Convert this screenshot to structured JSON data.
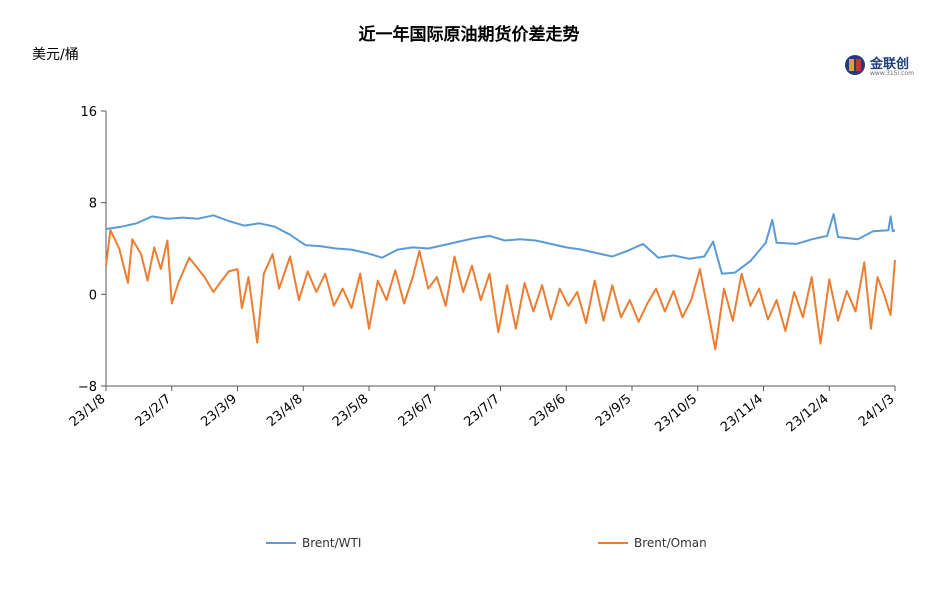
{
  "chart_data": {
    "type": "line",
    "title": "近一年国际原油期货价差走势",
    "ylabel": "美元/桶",
    "ylim": [
      -8,
      16
    ],
    "yticks": [
      -8,
      0,
      8,
      16
    ],
    "xlim": [
      "2023-01-08",
      "2024-01-03"
    ],
    "xticks": [
      "23/1/8",
      "23/2/7",
      "23/3/9",
      "23/4/8",
      "23/5/8",
      "23/6/7",
      "23/7/7",
      "23/8/6",
      "23/9/5",
      "23/10/5",
      "23/11/4",
      "23/12/4",
      "24/1/3"
    ],
    "grid": false,
    "legend": "bottom",
    "series": [
      {
        "name": "Brent/WTI",
        "color": "#5b9bd5",
        "points": [
          [
            "2023-01-08",
            5.7
          ],
          [
            "2023-01-15",
            5.9
          ],
          [
            "2023-01-22",
            6.2
          ],
          [
            "2023-01-29",
            6.8
          ],
          [
            "2023-02-05",
            6.6
          ],
          [
            "2023-02-12",
            6.7
          ],
          [
            "2023-02-19",
            6.6
          ],
          [
            "2023-02-26",
            6.9
          ],
          [
            "2023-03-05",
            6.4
          ],
          [
            "2023-03-12",
            6.0
          ],
          [
            "2023-03-19",
            6.2
          ],
          [
            "2023-03-26",
            5.9
          ],
          [
            "2023-04-02",
            5.2
          ],
          [
            "2023-04-09",
            4.3
          ],
          [
            "2023-04-16",
            4.2
          ],
          [
            "2023-04-23",
            4.0
          ],
          [
            "2023-04-30",
            3.9
          ],
          [
            "2023-05-07",
            3.6
          ],
          [
            "2023-05-14",
            3.2
          ],
          [
            "2023-05-21",
            3.9
          ],
          [
            "2023-05-28",
            4.1
          ],
          [
            "2023-06-04",
            4.0
          ],
          [
            "2023-06-11",
            4.3
          ],
          [
            "2023-06-18",
            4.6
          ],
          [
            "2023-06-25",
            4.9
          ],
          [
            "2023-07-02",
            5.1
          ],
          [
            "2023-07-09",
            4.7
          ],
          [
            "2023-07-16",
            4.8
          ],
          [
            "2023-07-23",
            4.7
          ],
          [
            "2023-07-30",
            4.4
          ],
          [
            "2023-08-06",
            4.1
          ],
          [
            "2023-08-13",
            3.9
          ],
          [
            "2023-08-20",
            3.6
          ],
          [
            "2023-08-27",
            3.3
          ],
          [
            "2023-09-03",
            3.8
          ],
          [
            "2023-09-10",
            4.4
          ],
          [
            "2023-09-17",
            3.2
          ],
          [
            "2023-09-24",
            3.4
          ],
          [
            "2023-10-01",
            3.1
          ],
          [
            "2023-10-08",
            3.3
          ],
          [
            "2023-10-12",
            4.6
          ],
          [
            "2023-10-16",
            1.8
          ],
          [
            "2023-10-22",
            1.9
          ],
          [
            "2023-10-29",
            2.9
          ],
          [
            "2023-11-05",
            4.5
          ],
          [
            "2023-11-08",
            6.5
          ],
          [
            "2023-11-10",
            4.5
          ],
          [
            "2023-11-19",
            4.4
          ],
          [
            "2023-11-26",
            4.8
          ],
          [
            "2023-12-03",
            5.1
          ],
          [
            "2023-12-06",
            7.0
          ],
          [
            "2023-12-08",
            5.0
          ],
          [
            "2023-12-17",
            4.8
          ],
          [
            "2023-12-24",
            5.5
          ],
          [
            "2023-12-31",
            5.6
          ],
          [
            "2024-01-01",
            6.8
          ],
          [
            "2024-01-02",
            5.5
          ],
          [
            "2024-01-03",
            5.6
          ]
        ]
      },
      {
        "name": "Brent/Oman",
        "color": "#ed7d31",
        "points": [
          [
            "2023-01-08",
            2.5
          ],
          [
            "2023-01-10",
            5.6
          ],
          [
            "2023-01-14",
            4.0
          ],
          [
            "2023-01-18",
            1.0
          ],
          [
            "2023-01-20",
            4.8
          ],
          [
            "2023-01-24",
            3.5
          ],
          [
            "2023-01-27",
            1.2
          ],
          [
            "2023-01-30",
            4.1
          ],
          [
            "2023-02-02",
            2.2
          ],
          [
            "2023-02-05",
            4.7
          ],
          [
            "2023-02-07",
            -0.8
          ],
          [
            "2023-02-10",
            1.0
          ],
          [
            "2023-02-15",
            3.2
          ],
          [
            "2023-02-22",
            1.5
          ],
          [
            "2023-02-26",
            0.2
          ],
          [
            "2023-03-01",
            1.0
          ],
          [
            "2023-03-05",
            2.0
          ],
          [
            "2023-03-09",
            2.2
          ],
          [
            "2023-03-11",
            -1.2
          ],
          [
            "2023-03-14",
            1.5
          ],
          [
            "2023-03-18",
            -4.2
          ],
          [
            "2023-03-21",
            1.8
          ],
          [
            "2023-03-25",
            3.5
          ],
          [
            "2023-03-28",
            0.5
          ],
          [
            "2023-04-02",
            3.3
          ],
          [
            "2023-04-06",
            -0.5
          ],
          [
            "2023-04-10",
            2.0
          ],
          [
            "2023-04-14",
            0.2
          ],
          [
            "2023-04-18",
            1.8
          ],
          [
            "2023-04-22",
            -1.0
          ],
          [
            "2023-04-26",
            0.5
          ],
          [
            "2023-04-30",
            -1.2
          ],
          [
            "2023-05-04",
            1.8
          ],
          [
            "2023-05-08",
            -3.0
          ],
          [
            "2023-05-12",
            1.2
          ],
          [
            "2023-05-16",
            -0.5
          ],
          [
            "2023-05-20",
            2.1
          ],
          [
            "2023-05-24",
            -0.8
          ],
          [
            "2023-05-28",
            1.5
          ],
          [
            "2023-05-31",
            3.8
          ],
          [
            "2023-06-04",
            0.5
          ],
          [
            "2023-06-08",
            1.5
          ],
          [
            "2023-06-12",
            -1.0
          ],
          [
            "2023-06-16",
            3.3
          ],
          [
            "2023-06-20",
            0.2
          ],
          [
            "2023-06-24",
            2.5
          ],
          [
            "2023-06-28",
            -0.5
          ],
          [
            "2023-07-02",
            1.8
          ],
          [
            "2023-07-06",
            -3.3
          ],
          [
            "2023-07-10",
            0.8
          ],
          [
            "2023-07-14",
            -3.0
          ],
          [
            "2023-07-18",
            1.0
          ],
          [
            "2023-07-22",
            -1.5
          ],
          [
            "2023-07-26",
            0.8
          ],
          [
            "2023-07-30",
            -2.2
          ],
          [
            "2023-08-03",
            0.5
          ],
          [
            "2023-08-07",
            -1.0
          ],
          [
            "2023-08-11",
            0.2
          ],
          [
            "2023-08-15",
            -2.5
          ],
          [
            "2023-08-19",
            1.2
          ],
          [
            "2023-08-23",
            -2.3
          ],
          [
            "2023-08-27",
            0.8
          ],
          [
            "2023-08-31",
            -2.0
          ],
          [
            "2023-09-04",
            -0.5
          ],
          [
            "2023-09-08",
            -2.4
          ],
          [
            "2023-09-12",
            -0.8
          ],
          [
            "2023-09-16",
            0.5
          ],
          [
            "2023-09-20",
            -1.5
          ],
          [
            "2023-09-24",
            0.3
          ],
          [
            "2023-09-28",
            -2.0
          ],
          [
            "2023-10-02",
            -0.5
          ],
          [
            "2023-10-06",
            2.2
          ],
          [
            "2023-10-10",
            -1.8
          ],
          [
            "2023-10-13",
            -4.8
          ],
          [
            "2023-10-17",
            0.5
          ],
          [
            "2023-10-21",
            -2.3
          ],
          [
            "2023-10-25",
            1.8
          ],
          [
            "2023-10-29",
            -1.0
          ],
          [
            "2023-11-02",
            0.5
          ],
          [
            "2023-11-06",
            -2.2
          ],
          [
            "2023-11-10",
            -0.5
          ],
          [
            "2023-11-14",
            -3.2
          ],
          [
            "2023-11-18",
            0.2
          ],
          [
            "2023-11-22",
            -2.0
          ],
          [
            "2023-11-26",
            1.5
          ],
          [
            "2023-11-30",
            -4.3
          ],
          [
            "2023-12-04",
            1.3
          ],
          [
            "2023-12-08",
            -2.3
          ],
          [
            "2023-12-12",
            0.3
          ],
          [
            "2023-12-16",
            -1.5
          ],
          [
            "2023-12-20",
            2.8
          ],
          [
            "2023-12-23",
            -3.0
          ],
          [
            "2023-12-26",
            1.5
          ],
          [
            "2023-12-29",
            0.0
          ],
          [
            "2024-01-01",
            -1.8
          ],
          [
            "2024-01-03",
            3.0
          ]
        ]
      }
    ]
  },
  "logo": {
    "text": "金联创",
    "sub": "www.315i.com"
  }
}
